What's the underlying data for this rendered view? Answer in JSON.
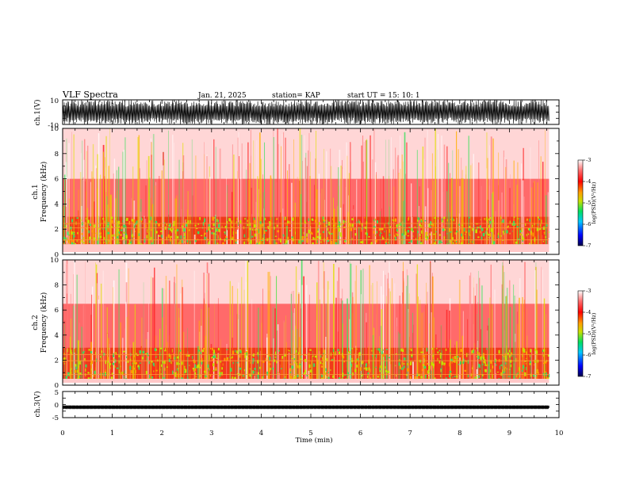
{
  "header": {
    "title": "VLF Spectra",
    "date": "Jan. 21, 2025",
    "station": "station= KAP",
    "start_ut": "start  UT =   15: 10: 1"
  },
  "chart_data": [
    {
      "type": "line",
      "name": "ch1-waveform",
      "ylabel": "ch.1(V)",
      "ylim": [
        -10,
        10
      ],
      "y_ticks": [
        "10",
        "-10"
      ],
      "xlim": [
        0,
        10
      ],
      "description_values": {
        "amplitude_range_V": [
          -10,
          10
        ]
      }
    },
    {
      "type": "heatmap",
      "name": "ch1-spectrogram",
      "ylabel": "ch.1\nFrequency  (kHz)",
      "ylabel_lines": [
        "ch.1",
        "Frequency  (kHz)"
      ],
      "ylim": [
        0,
        10
      ],
      "y_ticks": [
        "0",
        "2",
        "4",
        "6",
        "8",
        "10"
      ],
      "xlim": [
        0,
        10
      ],
      "colorbar": {
        "label": "log(PSD)(V²/Hz)",
        "range": [
          -7,
          -3
        ],
        "ticks": [
          "-3",
          "-4",
          "-5",
          "-6",
          "-7"
        ],
        "colors": [
          "#00004a",
          "#0000ff",
          "#00c8ff",
          "#00e060",
          "#c8e000",
          "#ffa000",
          "#ff0000",
          "#ff7070",
          "#ffffff"
        ]
      },
      "bands_kHz": {
        "strong": [
          0.8,
          3.0
        ],
        "medium": [
          3.0,
          6.0
        ],
        "weak": [
          6.0,
          10.0
        ]
      }
    },
    {
      "type": "heatmap",
      "name": "ch2-spectrogram",
      "ylabel": "ch.2\nFrequency  (kHz)",
      "ylabel_lines": [
        "ch.2",
        "Frequency  (kHz)"
      ],
      "ylim": [
        0,
        10
      ],
      "y_ticks": [
        "0",
        "2",
        "4",
        "6",
        "8",
        "10"
      ],
      "xlim": [
        0,
        10
      ],
      "colorbar": {
        "label": "log(PSD)(V²/Hz)",
        "range": [
          -7,
          -3
        ],
        "ticks": [
          "-3",
          "-4",
          "-5",
          "-6",
          "-7"
        ],
        "colors": [
          "#00004a",
          "#0000ff",
          "#00c8ff",
          "#00e060",
          "#c8e000",
          "#ffa000",
          "#ff0000",
          "#ff7070",
          "#ffffff"
        ]
      },
      "bands_kHz": {
        "strong": [
          0.5,
          3.0
        ],
        "medium": [
          3.0,
          6.5
        ],
        "weak": [
          6.5,
          10.0
        ]
      }
    },
    {
      "type": "line",
      "name": "ch3-waveform",
      "ylabel": "ch.3(V)",
      "ylim": [
        -5,
        5
      ],
      "y_ticks": [
        "5",
        "0",
        "-5"
      ],
      "xlim": [
        0,
        10
      ],
      "description_values": {
        "amplitude_range_V": [
          -1.2,
          -0.8
        ]
      }
    }
  ],
  "x_axis": {
    "label": "Time  (min)",
    "ticks": [
      "0",
      "1",
      "2",
      "3",
      "4",
      "5",
      "6",
      "7",
      "8",
      "9",
      "10"
    ],
    "data_end_min": 9.8
  },
  "colors": {
    "axis": "#000000",
    "background": "#ffffff"
  }
}
